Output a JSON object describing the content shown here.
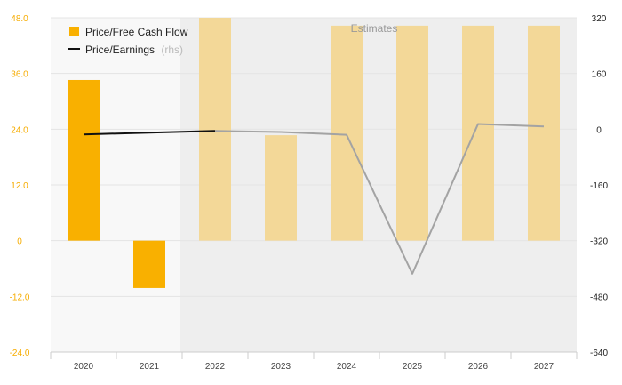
{
  "chart_data": {
    "type": "bar",
    "categories": [
      "2020",
      "2021",
      "2022",
      "2023",
      "2024",
      "2025",
      "2026",
      "2027"
    ],
    "estimate_start_category": "2022",
    "estimates_label": "Estimates",
    "series": [
      {
        "name": "Price/Free Cash Flow",
        "kind": "bar",
        "axis": "left",
        "color": "#f9b000",
        "estimate_color": "#f3d898",
        "values": [
          34.6,
          -10.2,
          48.0,
          22.7,
          46.3,
          46.3,
          46.3,
          46.3
        ]
      },
      {
        "name": "Price/Earnings",
        "name_suffix": "(rhs)",
        "kind": "line",
        "axis": "right",
        "color": "#111111",
        "estimate_color": "#a3a3a3",
        "values": [
          -15,
          -10,
          -5,
          -8,
          -16,
          -415,
          15,
          8
        ]
      }
    ],
    "left_axis": {
      "min": -24,
      "max": 48,
      "ticks": [
        "48.0",
        "36.0",
        "24.0",
        "12.0",
        "0",
        "-12.0",
        "-24.0"
      ],
      "tick_values": [
        48,
        36,
        24,
        12,
        0,
        -12,
        -24
      ],
      "color": "#f6ac00"
    },
    "right_axis": {
      "min": -640,
      "max": 320,
      "ticks": [
        "320",
        "160",
        "0",
        "-160",
        "-320",
        "-480",
        "-640"
      ],
      "tick_values": [
        320,
        160,
        0,
        -160,
        -320,
        -480,
        -640
      ]
    },
    "grid": true,
    "legend_position": "top-left"
  }
}
